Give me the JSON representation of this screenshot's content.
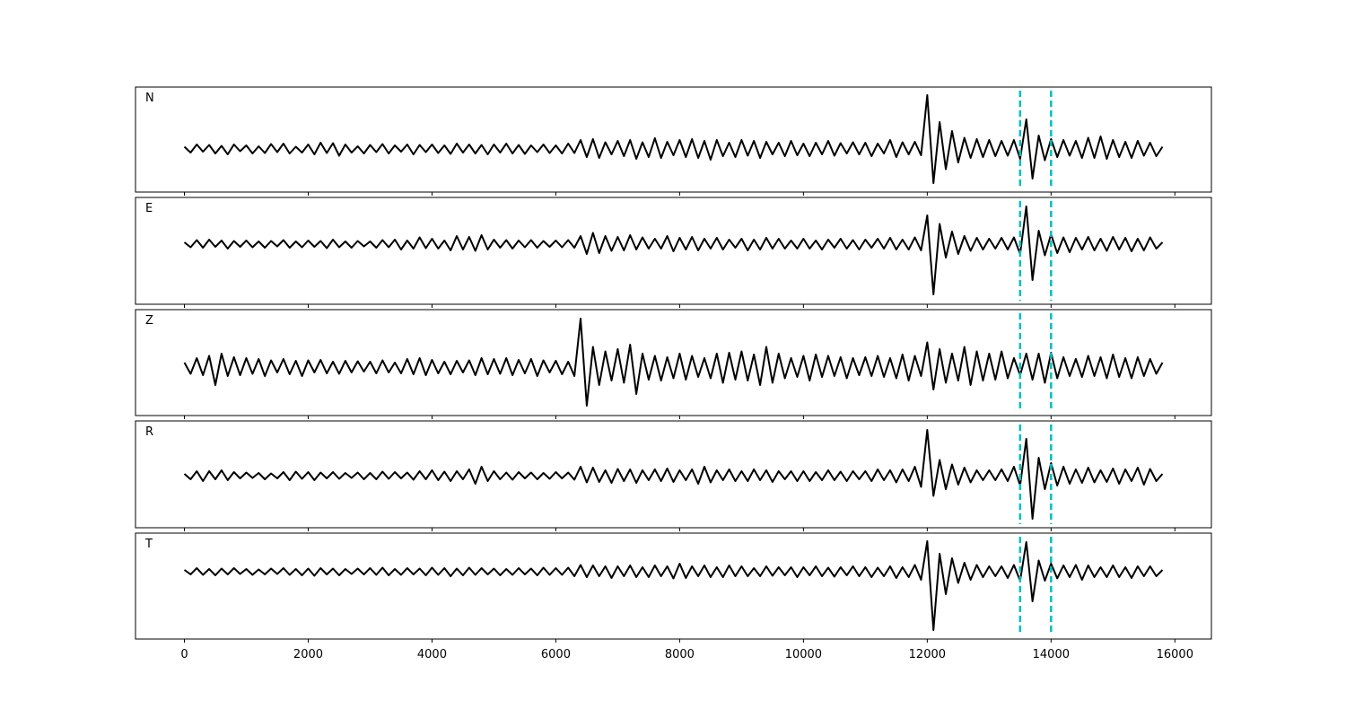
{
  "chart_data": {
    "type": "line",
    "x": [
      0,
      100,
      200,
      300,
      400,
      500,
      600,
      700,
      800,
      900,
      1000,
      1100,
      1200,
      1300,
      1400,
      1500,
      1600,
      1700,
      1800,
      1900,
      2000,
      2100,
      2200,
      2300,
      2400,
      2500,
      2600,
      2700,
      2800,
      2900,
      3000,
      3100,
      3200,
      3300,
      3400,
      3500,
      3600,
      3700,
      3800,
      3900,
      4000,
      4100,
      4200,
      4300,
      4400,
      4500,
      4600,
      4700,
      4800,
      4900,
      5000,
      5100,
      5200,
      5300,
      5400,
      5500,
      5600,
      5700,
      5800,
      5900,
      6000,
      6100,
      6200,
      6300,
      6400,
      6500,
      6600,
      6700,
      6800,
      6900,
      7000,
      7100,
      7200,
      7300,
      7400,
      7500,
      7600,
      7700,
      7800,
      7900,
      8000,
      8100,
      8200,
      8300,
      8400,
      8500,
      8600,
      8700,
      8800,
      8900,
      9000,
      9100,
      9200,
      9300,
      9400,
      9500,
      9600,
      9700,
      9800,
      9900,
      10000,
      10100,
      10200,
      10300,
      10400,
      10500,
      10600,
      10700,
      10800,
      10900,
      11000,
      11100,
      11200,
      11300,
      11400,
      11500,
      11600,
      11700,
      11800,
      11900,
      12000,
      12100,
      12200,
      12300,
      12400,
      12500,
      12600,
      12700,
      12800,
      12900,
      13000,
      13100,
      13200,
      13300,
      13400,
      13500,
      13600,
      13700,
      13800,
      13900,
      14000,
      14100,
      14200,
      14300,
      14400,
      14500,
      14600,
      14700,
      14800,
      14900,
      15000,
      15100,
      15200,
      15300,
      15400,
      15500,
      15600,
      15700,
      15800
    ],
    "xlim": [
      -790,
      16590
    ],
    "xticks": [
      0,
      2000,
      4000,
      6000,
      8000,
      10000,
      12000,
      14000,
      16000
    ],
    "vlines": [
      13500,
      14000
    ],
    "vline_color": "#00bfbf",
    "series": [
      {
        "name": "N",
        "color": "#000000",
        "ylim": [
          -0.96,
          1.38
        ],
        "values": [
          0.05,
          -0.08,
          0.1,
          -0.06,
          0.09,
          -0.1,
          0.07,
          -0.12,
          0.1,
          -0.05,
          0.08,
          -0.1,
          0.06,
          -0.09,
          0.11,
          -0.07,
          0.12,
          -0.1,
          0.05,
          -0.08,
          0.1,
          -0.12,
          0.14,
          -0.09,
          0.13,
          -0.15,
          0.1,
          -0.08,
          0.06,
          -0.1,
          0.09,
          -0.07,
          0.11,
          -0.1,
          0.08,
          -0.06,
          0.1,
          -0.12,
          0.09,
          -0.07,
          0.1,
          -0.09,
          0.08,
          -0.11,
          0.12,
          -0.08,
          0.1,
          -0.1,
          0.09,
          -0.12,
          0.1,
          -0.08,
          0.12,
          -0.1,
          0.09,
          -0.11,
          0.08,
          -0.07,
          0.1,
          -0.09,
          0.08,
          -0.1,
          0.12,
          -0.09,
          0.2,
          -0.18,
          0.22,
          -0.2,
          0.15,
          -0.12,
          0.18,
          -0.16,
          0.2,
          -0.22,
          0.15,
          -0.18,
          0.24,
          -0.2,
          0.16,
          -0.14,
          0.2,
          -0.18,
          0.22,
          -0.2,
          0.18,
          -0.24,
          0.2,
          -0.16,
          0.14,
          -0.18,
          0.2,
          -0.15,
          0.18,
          -0.2,
          0.16,
          -0.12,
          0.14,
          -0.16,
          0.18,
          -0.14,
          0.12,
          -0.16,
          0.14,
          -0.12,
          0.18,
          -0.15,
          0.13,
          -0.1,
          0.15,
          -0.12,
          0.14,
          -0.16,
          0.12,
          -0.1,
          0.2,
          -0.18,
          0.15,
          -0.12,
          0.16,
          -0.14,
          1.2,
          -0.76,
          0.6,
          -0.45,
          0.4,
          -0.3,
          0.25,
          -0.2,
          0.22,
          -0.18,
          0.2,
          -0.16,
          0.18,
          -0.15,
          0.2,
          -0.22,
          0.66,
          -0.66,
          0.3,
          -0.25,
          0.22,
          -0.18,
          0.2,
          -0.15,
          0.18,
          -0.2,
          0.25,
          -0.2,
          0.28,
          -0.22,
          0.2,
          -0.18,
          0.16,
          -0.2,
          0.18,
          -0.15,
          0.14,
          -0.16,
          0.05
        ]
      },
      {
        "name": "E",
        "color": "#000000",
        "ylim": [
          -1.34,
          1.04
        ],
        "values": [
          0.04,
          -0.07,
          0.09,
          -0.08,
          0.1,
          -0.06,
          0.08,
          -0.1,
          0.07,
          -0.06,
          0.08,
          -0.07,
          0.06,
          -0.08,
          0.07,
          -0.05,
          0.09,
          -0.08,
          0.06,
          -0.07,
          0.08,
          -0.06,
          0.07,
          -0.09,
          0.1,
          -0.07,
          0.06,
          -0.08,
          0.07,
          -0.05,
          0.06,
          -0.08,
          0.09,
          -0.07,
          0.1,
          -0.12,
          0.08,
          -0.1,
          0.15,
          -0.09,
          0.12,
          -0.1,
          0.08,
          -0.14,
          0.18,
          -0.12,
          0.16,
          -0.15,
          0.2,
          -0.12,
          0.1,
          -0.08,
          0.09,
          -0.1,
          0.08,
          -0.07,
          0.09,
          -0.08,
          0.07,
          -0.06,
          0.08,
          -0.07,
          0.09,
          -0.08,
          0.18,
          -0.22,
          0.25,
          -0.2,
          0.18,
          -0.15,
          0.16,
          -0.14,
          0.2,
          -0.12,
          0.15,
          -0.1,
          0.12,
          -0.1,
          0.18,
          -0.16,
          0.14,
          -0.12,
          0.16,
          -0.14,
          0.12,
          -0.1,
          0.14,
          -0.12,
          0.1,
          -0.08,
          0.12,
          -0.14,
          0.1,
          -0.12,
          0.14,
          -0.1,
          0.12,
          -0.1,
          0.08,
          -0.1,
          0.12,
          -0.1,
          0.08,
          -0.12,
          0.1,
          -0.08,
          0.12,
          -0.1,
          0.09,
          -0.12,
          0.1,
          -0.08,
          0.12,
          -0.1,
          0.14,
          -0.12,
          0.1,
          -0.12,
          0.15,
          -0.14,
          0.64,
          -1.12,
          0.45,
          -0.3,
          0.28,
          -0.22,
          0.18,
          -0.15,
          0.14,
          -0.12,
          0.12,
          -0.1,
          0.14,
          -0.12,
          0.15,
          -0.22,
          0.84,
          -0.8,
          0.3,
          -0.25,
          0.22,
          -0.2,
          0.15,
          -0.18,
          0.14,
          -0.12,
          0.16,
          -0.14,
          0.12,
          -0.15,
          0.16,
          -0.12,
          0.14,
          -0.16,
          0.12,
          -0.14,
          0.15,
          -0.1,
          0.04
        ]
      },
      {
        "name": "Z",
        "color": "#000000",
        "ylim": [
          -1.08,
          1.28
        ],
        "values": [
          0.1,
          -0.15,
          0.2,
          -0.18,
          0.25,
          -0.4,
          0.3,
          -0.2,
          0.22,
          -0.18,
          0.2,
          -0.15,
          0.18,
          -0.2,
          0.15,
          -0.12,
          0.18,
          -0.16,
          0.14,
          -0.2,
          0.15,
          -0.12,
          0.16,
          -0.14,
          0.12,
          -0.15,
          0.14,
          -0.12,
          0.13,
          -0.1,
          0.12,
          -0.14,
          0.15,
          -0.12,
          0.1,
          -0.14,
          0.18,
          -0.16,
          0.2,
          -0.18,
          0.16,
          -0.14,
          0.12,
          -0.16,
          0.14,
          -0.12,
          0.15,
          -0.18,
          0.2,
          -0.16,
          0.18,
          -0.15,
          0.2,
          -0.18,
          0.16,
          -0.14,
          0.18,
          -0.2,
          0.15,
          -0.12,
          0.14,
          -0.16,
          0.12,
          -0.2,
          1.08,
          -0.86,
          0.45,
          -0.4,
          0.35,
          -0.3,
          0.4,
          -0.35,
          0.5,
          -0.6,
          0.3,
          -0.28,
          0.25,
          -0.3,
          0.22,
          -0.25,
          0.3,
          -0.28,
          0.25,
          -0.22,
          0.2,
          -0.25,
          0.3,
          -0.35,
          0.32,
          -0.28,
          0.35,
          -0.3,
          0.28,
          -0.4,
          0.45,
          -0.35,
          0.3,
          -0.25,
          0.2,
          -0.22,
          0.25,
          -0.3,
          0.28,
          -0.22,
          0.25,
          -0.2,
          0.22,
          -0.25,
          0.2,
          -0.18,
          0.22,
          -0.2,
          0.25,
          -0.22,
          0.2,
          -0.25,
          0.28,
          -0.3,
          0.25,
          -0.2,
          0.55,
          -0.5,
          0.4,
          -0.35,
          0.3,
          -0.3,
          0.45,
          -0.4,
          0.35,
          -0.3,
          0.3,
          -0.28,
          0.35,
          -0.25,
          0.2,
          -0.18,
          0.3,
          -0.28,
          0.3,
          -0.35,
          0.32,
          -0.25,
          0.22,
          -0.2,
          0.18,
          -0.22,
          0.25,
          -0.2,
          0.22,
          -0.25,
          0.28,
          -0.22,
          0.2,
          -0.25,
          0.22,
          -0.2,
          0.18,
          -0.15,
          0.1
        ]
      },
      {
        "name": "R",
        "color": "#000000",
        "ylim": [
          -1.16,
          1.22
        ],
        "values": [
          0.04,
          -0.08,
          0.1,
          -0.12,
          0.1,
          -0.08,
          0.12,
          -0.1,
          0.08,
          -0.06,
          0.07,
          -0.05,
          0.06,
          -0.08,
          0.05,
          -0.06,
          0.08,
          -0.1,
          0.09,
          -0.07,
          0.08,
          -0.1,
          0.07,
          -0.06,
          0.08,
          -0.07,
          0.06,
          -0.05,
          0.07,
          -0.08,
          0.06,
          -0.08,
          0.09,
          -0.07,
          0.08,
          -0.06,
          0.07,
          -0.09,
          0.1,
          -0.08,
          0.12,
          -0.1,
          0.09,
          -0.12,
          0.1,
          -0.08,
          0.14,
          -0.18,
          0.2,
          -0.12,
          0.1,
          -0.08,
          0.07,
          -0.09,
          0.08,
          -0.06,
          0.07,
          -0.08,
          0.06,
          -0.07,
          0.08,
          -0.06,
          0.07,
          -0.09,
          0.2,
          -0.15,
          0.18,
          -0.14,
          0.12,
          -0.16,
          0.15,
          -0.12,
          0.14,
          -0.16,
          0.12,
          -0.1,
          0.14,
          -0.12,
          0.16,
          -0.14,
          0.12,
          -0.1,
          0.14,
          -0.18,
          0.2,
          -0.15,
          0.12,
          -0.1,
          0.14,
          -0.12,
          0.1,
          -0.12,
          0.14,
          -0.1,
          0.12,
          -0.14,
          0.1,
          -0.08,
          0.1,
          -0.12,
          0.1,
          -0.12,
          0.08,
          -0.1,
          0.12,
          -0.1,
          0.09,
          -0.12,
          0.1,
          -0.08,
          0.1,
          -0.12,
          0.14,
          -0.1,
          0.12,
          -0.15,
          0.14,
          -0.12,
          0.2,
          -0.25,
          1.02,
          -0.45,
          0.35,
          -0.3,
          0.25,
          -0.2,
          0.18,
          -0.15,
          0.12,
          -0.1,
          0.12,
          -0.1,
          0.14,
          -0.12,
          0.2,
          -0.22,
          0.82,
          -0.96,
          0.4,
          -0.3,
          0.28,
          -0.22,
          0.2,
          -0.18,
          0.14,
          -0.16,
          0.18,
          -0.15,
          0.12,
          -0.14,
          0.16,
          -0.18,
          0.14,
          -0.12,
          0.18,
          -0.2,
          0.15,
          -0.12,
          0.04
        ]
      },
      {
        "name": "T",
        "color": "#000000",
        "ylim": [
          -1.5,
          0.86
        ],
        "values": [
          0.04,
          -0.06,
          0.08,
          -0.07,
          0.06,
          -0.08,
          0.07,
          -0.06,
          0.08,
          -0.05,
          0.06,
          -0.07,
          0.05,
          -0.06,
          0.07,
          -0.05,
          0.08,
          -0.07,
          0.06,
          -0.08,
          0.07,
          -0.09,
          0.08,
          -0.06,
          0.07,
          -0.08,
          0.06,
          -0.05,
          0.07,
          -0.06,
          0.08,
          -0.07,
          0.09,
          -0.08,
          0.06,
          -0.07,
          0.08,
          -0.06,
          0.07,
          -0.08,
          0.09,
          -0.07,
          0.08,
          -0.1,
          0.07,
          -0.08,
          0.09,
          -0.07,
          0.08,
          -0.06,
          0.07,
          -0.08,
          0.06,
          -0.07,
          0.08,
          -0.06,
          0.07,
          -0.08,
          0.09,
          -0.07,
          0.08,
          -0.07,
          0.09,
          -0.1,
          0.15,
          -0.12,
          0.14,
          -0.1,
          0.12,
          -0.14,
          0.12,
          -0.1,
          0.14,
          -0.12,
          0.1,
          -0.12,
          0.14,
          -0.1,
          0.12,
          -0.15,
          0.18,
          -0.14,
          0.12,
          -0.1,
          0.14,
          -0.12,
          0.1,
          -0.12,
          0.14,
          -0.1,
          0.12,
          -0.1,
          0.08,
          -0.1,
          0.12,
          -0.09,
          0.1,
          -0.08,
          0.1,
          -0.12,
          0.1,
          -0.08,
          0.12,
          -0.1,
          0.09,
          -0.11,
          0.1,
          -0.08,
          0.12,
          -0.1,
          0.1,
          -0.12,
          0.09,
          -0.1,
          0.12,
          -0.14,
          0.1,
          -0.12,
          0.15,
          -0.18,
          0.68,
          -1.3,
          0.4,
          -0.5,
          0.3,
          -0.25,
          0.2,
          -0.18,
          0.15,
          -0.12,
          0.12,
          -0.1,
          0.12,
          -0.14,
          0.15,
          -0.2,
          0.66,
          -0.66,
          0.25,
          -0.2,
          0.18,
          -0.15,
          0.14,
          -0.12,
          0.15,
          -0.18,
          0.14,
          -0.12,
          0.1,
          -0.12,
          0.14,
          -0.12,
          0.1,
          -0.14,
          0.12,
          -0.1,
          0.12,
          -0.1,
          0.04
        ]
      }
    ]
  }
}
